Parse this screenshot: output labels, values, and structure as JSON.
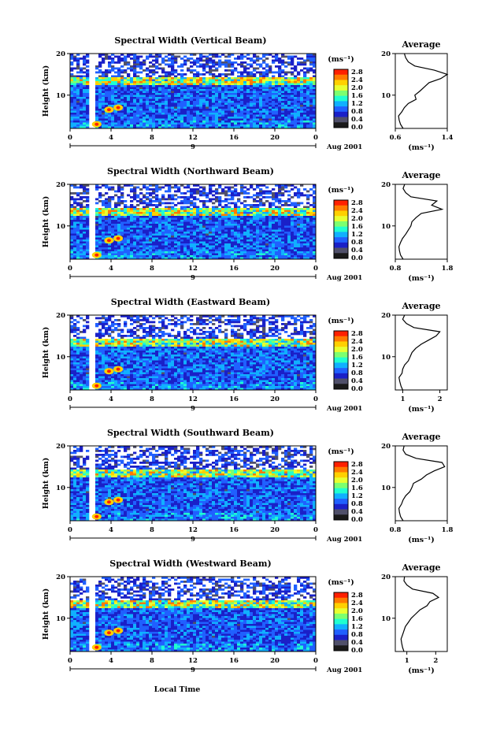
{
  "figure": {
    "xlabel": "Local Time",
    "date_label": "Aug 2001",
    "date_day": "9",
    "ylabel": "Height (km)",
    "unit_label": "(ms⁻¹)",
    "colorbar_ticks": [
      "2.8",
      "2.4",
      "2.0",
      "1.6",
      "1.2",
      "0.8",
      "0.4",
      "0.0"
    ],
    "colorbar_colors": [
      "#ff2000",
      "#ff7a00",
      "#ffd000",
      "#e8ff30",
      "#7cff70",
      "#20ffd0",
      "#10b0ff",
      "#2060ff",
      "#1a20c8",
      "#50506a",
      "#1a1a1a"
    ],
    "avg_title": "Average",
    "avg_unit": "(ms⁻¹)"
  },
  "chart_data": [
    {
      "type": "heatmap",
      "title": "Spectral Width (Vertical Beam)",
      "xlabel": "Local Time",
      "ylabel": "Height (km)",
      "xticks": [
        "0",
        "4",
        "8",
        "12",
        "16",
        "20",
        "0"
      ],
      "yticks": [
        "10",
        "20"
      ],
      "xlim": [
        0,
        24
      ],
      "ylim": [
        2,
        20
      ],
      "zlim": [
        0,
        2.8
      ],
      "avg": {
        "xticks": [
          "0.6",
          "1.4"
        ],
        "xlim": [
          0.6,
          1.4
        ],
        "yticks": [
          "10",
          "20"
        ],
        "heights": [
          2,
          3,
          4,
          5,
          6,
          7,
          8,
          9,
          10,
          11,
          12,
          13,
          14,
          15,
          16,
          17,
          18,
          19,
          20
        ],
        "values": [
          0.72,
          0.68,
          0.66,
          0.65,
          0.7,
          0.74,
          0.8,
          0.92,
          0.9,
          0.98,
          1.05,
          1.12,
          1.3,
          1.4,
          1.2,
          0.9,
          0.8,
          0.76,
          0.74
        ]
      }
    },
    {
      "type": "heatmap",
      "title": "Spectral Width (Northward Beam)",
      "xlabel": "Local Time",
      "ylabel": "Height (km)",
      "xticks": [
        "0",
        "4",
        "8",
        "12",
        "16",
        "20",
        "0"
      ],
      "yticks": [
        "10",
        "20"
      ],
      "xlim": [
        0,
        24
      ],
      "ylim": [
        2,
        20
      ],
      "zlim": [
        0,
        2.8
      ],
      "avg": {
        "xticks": [
          "0.8",
          "1.8"
        ],
        "xlim": [
          0.8,
          1.8
        ],
        "yticks": [
          "10",
          "20"
        ],
        "heights": [
          2,
          3,
          4,
          5,
          6,
          7,
          8,
          9,
          10,
          11,
          12,
          13,
          14,
          15,
          16,
          17,
          18,
          19,
          20
        ],
        "values": [
          0.95,
          0.9,
          0.88,
          0.87,
          0.9,
          0.94,
          1.0,
          1.05,
          1.1,
          1.12,
          1.2,
          1.3,
          1.7,
          1.5,
          1.6,
          1.1,
          1.0,
          0.95,
          0.98
        ]
      }
    },
    {
      "type": "heatmap",
      "title": "Spectral Width (Eastward Beam)",
      "xlabel": "Local Time",
      "ylabel": "Height (km)",
      "xticks": [
        "0",
        "4",
        "8",
        "12",
        "16",
        "20",
        "0"
      ],
      "yticks": [
        "10",
        "20"
      ],
      "xlim": [
        0,
        24
      ],
      "ylim": [
        2,
        20
      ],
      "zlim": [
        0,
        2.8
      ],
      "avg": {
        "xticks": [
          "1",
          "2"
        ],
        "xlim": [
          0.8,
          2.2
        ],
        "yticks": [
          "10",
          "20"
        ],
        "heights": [
          2,
          3,
          4,
          5,
          6,
          7,
          8,
          9,
          10,
          11,
          12,
          13,
          14,
          15,
          16,
          17,
          18,
          19,
          20
        ],
        "values": [
          1.0,
          0.95,
          0.92,
          0.9,
          0.98,
          1.0,
          1.05,
          1.15,
          1.2,
          1.25,
          1.35,
          1.5,
          1.7,
          1.9,
          2.0,
          1.3,
          1.1,
          1.0,
          1.05
        ]
      }
    },
    {
      "type": "heatmap",
      "title": "Spectral Width (Southward Beam)",
      "xlabel": "Local Time",
      "ylabel": "Height (km)",
      "xticks": [
        "0",
        "4",
        "8",
        "12",
        "16",
        "20",
        "0"
      ],
      "yticks": [
        "10",
        "20"
      ],
      "xlim": [
        0,
        24
      ],
      "ylim": [
        2,
        20
      ],
      "zlim": [
        0,
        2.8
      ],
      "avg": {
        "xticks": [
          "0.8",
          "1.8"
        ],
        "xlim": [
          0.8,
          1.8
        ],
        "yticks": [
          "10",
          "20"
        ],
        "heights": [
          2,
          3,
          4,
          5,
          6,
          7,
          8,
          9,
          10,
          11,
          12,
          13,
          14,
          15,
          16,
          17,
          18,
          19,
          20
        ],
        "values": [
          0.95,
          0.9,
          0.88,
          0.87,
          0.92,
          0.95,
          1.0,
          1.08,
          1.12,
          1.15,
          1.3,
          1.4,
          1.55,
          1.75,
          1.7,
          1.2,
          1.0,
          0.95,
          0.97
        ]
      }
    },
    {
      "type": "heatmap",
      "title": "Spectral Width (Westward Beam)",
      "xlabel": "Local Time",
      "ylabel": "Height (km)",
      "xticks": [
        "0",
        "4",
        "8",
        "12",
        "16",
        "20",
        "0"
      ],
      "yticks": [
        "10",
        "20"
      ],
      "xlim": [
        0,
        24
      ],
      "ylim": [
        2,
        20
      ],
      "zlim": [
        0,
        2.8
      ],
      "avg": {
        "xticks": [
          "1",
          "2"
        ],
        "xlim": [
          0.6,
          2.4
        ],
        "yticks": [
          "10",
          "20"
        ],
        "heights": [
          2,
          3,
          4,
          5,
          6,
          7,
          8,
          9,
          10,
          11,
          12,
          13,
          14,
          15,
          16,
          17,
          18,
          19,
          20
        ],
        "values": [
          0.9,
          0.85,
          0.82,
          0.8,
          0.85,
          0.9,
          0.95,
          1.05,
          1.15,
          1.3,
          1.45,
          1.7,
          1.8,
          2.1,
          1.9,
          1.2,
          1.0,
          0.9,
          0.92
        ]
      }
    }
  ]
}
